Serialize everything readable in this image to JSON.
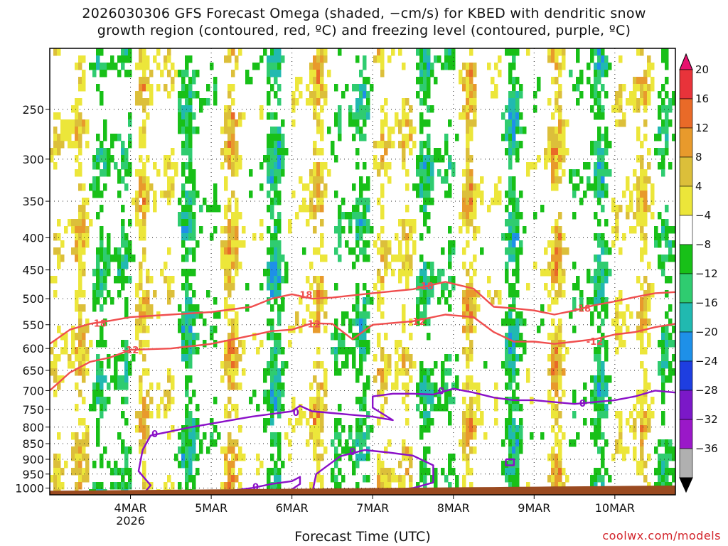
{
  "chart_data": {
    "type": "heatmap",
    "title_line1": "2026030306 GFS Forecast Omega (shaded, −cm/s) for KBED with dendritic snow",
    "title_line2": "growth region (contoured, red, ºC) and freezing level (contoured, purple, ºC)",
    "xlabel": "Forecast Time (UTC)",
    "ylabel": "",
    "credit": "coolwx.com/models",
    "x_ticks": [
      {
        "label": "4MAR",
        "sublabel": "2026",
        "day": 1
      },
      {
        "label": "5MAR",
        "sublabel": "",
        "day": 2
      },
      {
        "label": "6MAR",
        "sublabel": "",
        "day": 3
      },
      {
        "label": "7MAR",
        "sublabel": "",
        "day": 4
      },
      {
        "label": "8MAR",
        "sublabel": "",
        "day": 5
      },
      {
        "label": "9MAR",
        "sublabel": "",
        "day": 6
      },
      {
        "label": "10MAR",
        "sublabel": "",
        "day": 7
      }
    ],
    "x_range_days": [
      0.0,
      7.75
    ],
    "y_ticks": [
      "250",
      "300",
      "350",
      "400",
      "450",
      "500",
      "550",
      "600",
      "650",
      "700",
      "750",
      "800",
      "850",
      "900",
      "950",
      "1000"
    ],
    "y_range_hPa": [
      200,
      1025
    ],
    "colorbar": {
      "labels": [
        "20",
        "16",
        "12",
        "8",
        "4",
        "−4",
        "−8",
        "−12",
        "−16",
        "−20",
        "−24",
        "−28",
        "−32",
        "−36"
      ],
      "colors": [
        "#e8106e",
        "#e8333a",
        "#e96a28",
        "#e89a2c",
        "#dcbf3a",
        "#ece63a",
        "#ffffff",
        "#18c018",
        "#2fcc70",
        "#21b9b0",
        "#1e90e8",
        "#1e3ee0",
        "#7b18c8",
        "#9a18c8",
        "#b0b0b0",
        "#000000"
      ]
    },
    "contours": [
      {
        "label": "-18",
        "color": "#f04e4e",
        "points": [
          [
            0,
            590
          ],
          [
            0.25,
            560
          ],
          [
            0.5,
            548
          ],
          [
            0.75,
            542
          ],
          [
            1.0,
            535
          ],
          [
            1.5,
            530
          ],
          [
            2.0,
            525
          ],
          [
            2.5,
            515
          ],
          [
            2.75,
            500
          ],
          [
            3.0,
            492
          ],
          [
            3.25,
            500
          ],
          [
            3.5,
            498
          ],
          [
            4.0,
            490
          ],
          [
            4.5,
            483
          ],
          [
            4.9,
            470
          ],
          [
            5.25,
            482
          ],
          [
            5.5,
            515
          ],
          [
            5.75,
            518
          ],
          [
            6.0,
            522
          ],
          [
            6.25,
            530
          ],
          [
            6.5,
            522
          ],
          [
            6.75,
            512
          ],
          [
            7.0,
            505
          ],
          [
            7.25,
            497
          ],
          [
            7.5,
            490
          ],
          [
            7.75,
            488
          ]
        ],
        "labels_at": [
          [
            0.6,
            547
          ],
          [
            3.15,
            493
          ],
          [
            4.65,
            477
          ],
          [
            6.6,
            518
          ]
        ]
      },
      {
        "label": "-12",
        "color": "#f04e4e",
        "points": [
          [
            0,
            700
          ],
          [
            0.25,
            655
          ],
          [
            0.5,
            630
          ],
          [
            0.75,
            620
          ],
          [
            1.0,
            603
          ],
          [
            1.5,
            600
          ],
          [
            2.0,
            590
          ],
          [
            2.5,
            572
          ],
          [
            2.75,
            563
          ],
          [
            3.0,
            560
          ],
          [
            3.25,
            547
          ],
          [
            3.5,
            548
          ],
          [
            3.75,
            580
          ],
          [
            4.0,
            550
          ],
          [
            4.5,
            543
          ],
          [
            4.9,
            530
          ],
          [
            5.25,
            535
          ],
          [
            5.5,
            565
          ],
          [
            5.75,
            585
          ],
          [
            6.0,
            585
          ],
          [
            6.25,
            590
          ],
          [
            6.5,
            585
          ],
          [
            6.75,
            580
          ],
          [
            7.0,
            570
          ],
          [
            7.25,
            565
          ],
          [
            7.5,
            555
          ],
          [
            7.75,
            548
          ]
        ],
        "labels_at": [
          [
            1.0,
            603
          ],
          [
            3.25,
            548
          ],
          [
            4.55,
            543
          ],
          [
            6.75,
            584
          ]
        ]
      },
      {
        "label": "0",
        "color": "#8a10c8",
        "points": [
          [
            1.15,
            1025
          ],
          [
            1.25,
            990
          ],
          [
            1.1,
            940
          ],
          [
            1.15,
            870
          ],
          [
            1.25,
            825
          ],
          [
            1.45,
            815
          ],
          [
            1.75,
            800
          ],
          [
            2.0,
            790
          ],
          [
            2.5,
            770
          ],
          [
            3.0,
            755
          ],
          [
            3.1,
            740
          ],
          [
            3.25,
            755
          ],
          [
            3.5,
            760
          ],
          [
            3.75,
            765
          ],
          [
            4.0,
            770
          ],
          [
            4.25,
            780
          ],
          [
            4.0,
            745
          ],
          [
            4.0,
            715
          ],
          [
            4.25,
            708
          ],
          [
            4.5,
            708
          ],
          [
            4.75,
            710
          ],
          [
            5.0,
            695
          ],
          [
            5.25,
            705
          ],
          [
            5.5,
            718
          ],
          [
            5.75,
            725
          ],
          [
            6.0,
            725
          ],
          [
            6.25,
            730
          ],
          [
            6.5,
            735
          ],
          [
            6.75,
            730
          ],
          [
            7.0,
            725
          ],
          [
            7.25,
            715
          ],
          [
            7.5,
            700
          ],
          [
            7.75,
            705
          ]
        ],
        "labels_at": [
          [
            1.3,
            820
          ],
          [
            3.05,
            758
          ],
          [
            4.85,
            700
          ],
          [
            6.6,
            733
          ]
        ]
      },
      {
        "label": "0",
        "color": "#8a10c8",
        "points": [
          [
            2.0,
            1020
          ],
          [
            2.5,
            1000
          ],
          [
            2.75,
            985
          ],
          [
            3.0,
            975
          ],
          [
            3.1,
            960
          ],
          [
            3.1,
            985
          ],
          [
            3.0,
            1005
          ],
          [
            2.75,
            1020
          ]
        ],
        "labels_at": [
          [
            2.55,
            995
          ]
        ]
      },
      {
        "label": "0",
        "color": "#8a10c8",
        "points": [
          [
            3.25,
            1022
          ],
          [
            3.3,
            950
          ],
          [
            3.6,
            890
          ],
          [
            3.9,
            870
          ],
          [
            4.2,
            878
          ],
          [
            4.5,
            888
          ],
          [
            4.75,
            920
          ],
          [
            4.75,
            980
          ],
          [
            4.5,
            1000
          ],
          [
            4.2,
            1010
          ],
          [
            3.9,
            1015
          ],
          [
            3.5,
            1020
          ]
        ],
        "labels_at": [
          [
            3.75,
            875
          ]
        ]
      },
      {
        "label": "",
        "color": "#8a10c8",
        "points": [
          [
            5.65,
            900
          ],
          [
            5.75,
            900
          ],
          [
            5.75,
            920
          ],
          [
            5.65,
            920
          ],
          [
            5.65,
            900
          ]
        ],
        "labels_at": []
      }
    ]
  }
}
